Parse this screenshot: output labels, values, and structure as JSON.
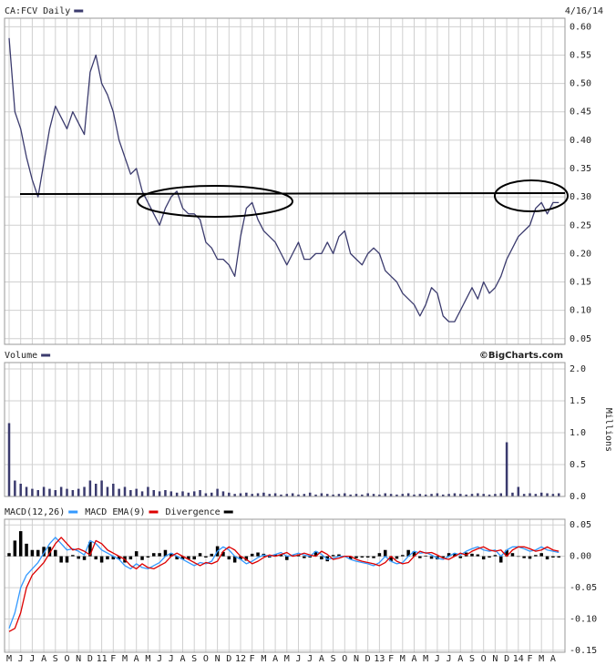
{
  "chart_data": [
    {
      "type": "line",
      "series": [
        {
          "name": "CA:FCV Daily",
          "color": "#3b3b6e",
          "values": [
            0.58,
            0.45,
            0.42,
            0.37,
            0.33,
            0.3,
            0.36,
            0.42,
            0.46,
            0.44,
            0.42,
            0.45,
            0.43,
            0.41,
            0.52,
            0.55,
            0.5,
            0.48,
            0.45,
            0.4,
            0.37,
            0.34,
            0.35,
            0.31,
            0.29,
            0.27,
            0.25,
            0.28,
            0.3,
            0.31,
            0.28,
            0.27,
            0.27,
            0.26,
            0.22,
            0.21,
            0.19,
            0.19,
            0.18,
            0.16,
            0.23,
            0.28,
            0.29,
            0.26,
            0.24,
            0.23,
            0.22,
            0.2,
            0.18,
            0.2,
            0.22,
            0.19,
            0.19,
            0.2,
            0.2,
            0.22,
            0.2,
            0.23,
            0.24,
            0.2,
            0.19,
            0.18,
            0.2,
            0.21,
            0.2,
            0.17,
            0.16,
            0.15,
            0.13,
            0.12,
            0.11,
            0.09,
            0.11,
            0.14,
            0.13,
            0.09,
            0.08,
            0.08,
            0.1,
            0.12,
            0.14,
            0.12,
            0.15,
            0.13,
            0.14,
            0.16,
            0.19,
            0.21,
            0.23,
            0.24,
            0.25,
            0.28,
            0.29,
            0.27,
            0.29,
            0.29
          ]
        }
      ],
      "date": "4/16/14",
      "ylim": [
        0.04,
        0.615
      ],
      "yticks": [
        {
          "value": 0.6,
          "label": "0.60"
        },
        0.55,
        {
          "value": 0.5,
          "label": "0.50"
        },
        0.45,
        {
          "value": 0.4,
          "label": "0.40"
        },
        0.35,
        {
          "value": 0.3,
          "label": "0.30"
        },
        0.25,
        {
          "value": 0.2,
          "label": "0.20"
        },
        0.15,
        {
          "value": 0.1,
          "label": "0.10"
        },
        0.05
      ],
      "grid": true
    },
    {
      "type": "bar",
      "series": [
        {
          "name": "Volume",
          "color": "#3b3b6e",
          "values": [
            1.15,
            0.25,
            0.2,
            0.15,
            0.12,
            0.1,
            0.15,
            0.12,
            0.1,
            0.15,
            0.12,
            0.1,
            0.12,
            0.15,
            0.25,
            0.2,
            0.25,
            0.15,
            0.2,
            0.12,
            0.15,
            0.1,
            0.12,
            0.08,
            0.15,
            0.1,
            0.08,
            0.1,
            0.08,
            0.06,
            0.08,
            0.06,
            0.08,
            0.1,
            0.05,
            0.06,
            0.12,
            0.08,
            0.06,
            0.04,
            0.05,
            0.06,
            0.04,
            0.05,
            0.06,
            0.04,
            0.05,
            0.03,
            0.04,
            0.05,
            0.03,
            0.04,
            0.06,
            0.03,
            0.05,
            0.04,
            0.03,
            0.04,
            0.05,
            0.03,
            0.04,
            0.03,
            0.05,
            0.04,
            0.03,
            0.05,
            0.04,
            0.03,
            0.04,
            0.05,
            0.03,
            0.04,
            0.03,
            0.04,
            0.05,
            0.03,
            0.04,
            0.05,
            0.04,
            0.03,
            0.04,
            0.05,
            0.04,
            0.03,
            0.04,
            0.05,
            0.85,
            0.06,
            0.15,
            0.04,
            0.05,
            0.04,
            0.06,
            0.05,
            0.04,
            0.05
          ]
        }
      ],
      "source": "©BigCharts.com",
      "y_label": "Millions",
      "ylim": [
        0,
        2.1
      ],
      "yticks": [
        {
          "value": 2,
          "label": "2.0"
        },
        1.5,
        {
          "value": 1,
          "label": "1.0"
        },
        0.5,
        {
          "value": 0,
          "label": "0.0"
        }
      ],
      "grid": true
    },
    {
      "type": "line",
      "categories": [
        "M",
        null,
        "J",
        null,
        "J",
        null,
        "A",
        null,
        "S",
        null,
        "O",
        null,
        "N",
        null,
        "D",
        null,
        "11",
        null,
        "F",
        null,
        "M",
        null,
        "A",
        null,
        "M",
        null,
        "J",
        null,
        "J",
        null,
        "A",
        null,
        "S",
        null,
        "O",
        null,
        "N",
        null,
        "D",
        null,
        "12",
        null,
        "F",
        null,
        "M",
        null,
        "A",
        null,
        "M",
        null,
        "J",
        null,
        "J",
        null,
        "A",
        null,
        "S",
        null,
        "O",
        null,
        "N",
        null,
        "D",
        null,
        "13",
        null,
        "F",
        null,
        "M",
        null,
        "A",
        null,
        "M",
        null,
        "J",
        null,
        "J",
        null,
        "A",
        null,
        "S",
        null,
        "O",
        null,
        "N",
        null,
        "D",
        null,
        "14",
        null,
        "F",
        null,
        "M",
        null,
        "A",
        null
      ],
      "series": [
        {
          "name": "MACD(12,26)",
          "color": "#3399ff",
          "values": [
            -0.115,
            -0.09,
            -0.05,
            -0.03,
            -0.02,
            -0.01,
            0.005,
            0.02,
            0.03,
            0.02,
            0.01,
            0.012,
            0.008,
            0.002,
            0.025,
            0.02,
            0.01,
            0.005,
            0.0,
            -0.005,
            -0.015,
            -0.02,
            -0.012,
            -0.018,
            -0.02,
            -0.015,
            -0.01,
            0.0,
            0.005,
            0.0,
            -0.005,
            -0.01,
            -0.015,
            -0.01,
            -0.012,
            -0.008,
            0.008,
            0.015,
            0.01,
            0.0,
            -0.005,
            -0.012,
            -0.008,
            -0.002,
            0.002,
            0.0,
            0.003,
            0.006,
            0.0,
            0.002,
            0.005,
            0.002,
            0.0,
            0.008,
            0.003,
            -0.005,
            -0.003,
            0.0,
            0.0,
            -0.005,
            -0.008,
            -0.01,
            -0.012,
            -0.015,
            -0.01,
            0.0,
            -0.008,
            -0.012,
            -0.01,
            0.0,
            0.008,
            0.005,
            0.006,
            0.002,
            -0.003,
            -0.005,
            0.0,
            0.005,
            0.002,
            0.008,
            0.012,
            0.015,
            0.01,
            0.008,
            0.01,
            0.0,
            0.01,
            0.015,
            0.015,
            0.012,
            0.008,
            0.01,
            0.015,
            0.01,
            0.008,
            0.006
          ]
        },
        {
          "name": "MACD EMA(9)",
          "color": "#dd0000",
          "values": [
            -0.12,
            -0.115,
            -0.09,
            -0.05,
            -0.03,
            -0.02,
            -0.01,
            0.005,
            0.02,
            0.03,
            0.02,
            0.01,
            0.012,
            0.008,
            0.002,
            0.025,
            0.02,
            0.01,
            0.005,
            0.0,
            -0.005,
            -0.015,
            -0.02,
            -0.012,
            -0.018,
            -0.02,
            -0.015,
            -0.01,
            0.0,
            0.005,
            0.0,
            -0.005,
            -0.01,
            -0.015,
            -0.01,
            -0.012,
            -0.008,
            0.008,
            0.015,
            0.01,
            0.0,
            -0.005,
            -0.012,
            -0.008,
            -0.002,
            0.002,
            0.0,
            0.003,
            0.006,
            0.0,
            0.002,
            0.005,
            0.002,
            0.0,
            0.008,
            0.003,
            -0.005,
            -0.003,
            0.0,
            0.0,
            -0.005,
            -0.008,
            -0.01,
            -0.012,
            -0.015,
            -0.01,
            0.0,
            -0.008,
            -0.012,
            -0.01,
            0.0,
            0.008,
            0.005,
            0.006,
            0.002,
            -0.003,
            -0.005,
            0.0,
            0.005,
            0.002,
            0.008,
            0.012,
            0.015,
            0.01,
            0.008,
            0.01,
            0.0,
            0.01,
            0.015,
            0.015,
            0.012,
            0.008,
            0.01,
            0.015,
            0.01,
            0.008
          ]
        },
        {
          "name": "Divergence",
          "color": "#000000",
          "type": "bar",
          "values": [
            0.005,
            0.025,
            0.04,
            0.02,
            0.01,
            0.01,
            0.015,
            0.015,
            0.01,
            -0.01,
            -0.01,
            0.002,
            -0.004,
            -0.006,
            0.023,
            -0.005,
            -0.01,
            -0.005,
            -0.005,
            -0.005,
            -0.01,
            -0.005,
            0.008,
            -0.006,
            -0.002,
            0.005,
            0.005,
            0.01,
            0.005,
            -0.005,
            -0.005,
            -0.005,
            -0.005,
            0.005,
            -0.002,
            0.004,
            0.016,
            0.007,
            -0.005,
            -0.01,
            -0.005,
            -0.007,
            0.004,
            0.006,
            0.004,
            -0.002,
            0.003,
            0.003,
            -0.006,
            0.002,
            0.003,
            -0.003,
            -0.002,
            0.008,
            -0.005,
            -0.008,
            0.002,
            0.003,
            0.0,
            -0.005,
            -0.003,
            -0.002,
            -0.002,
            -0.003,
            0.005,
            0.01,
            -0.008,
            -0.004,
            0.002,
            0.01,
            0.008,
            -0.003,
            0.001,
            -0.004,
            -0.005,
            -0.002,
            0.005,
            0.005,
            -0.003,
            0.006,
            0.004,
            0.003,
            -0.005,
            -0.002,
            0.002,
            -0.01,
            0.01,
            0.005,
            0.0,
            -0.003,
            -0.004,
            0.002,
            0.005,
            -0.005,
            -0.002,
            -0.002
          ]
        }
      ],
      "ylim": [
        -0.153,
        0.059
      ],
      "yticks": [
        0.05,
        {
          "value": 0,
          "label": "0.00"
        },
        -0.05,
        {
          "value": -0.1,
          "label": "-0.10"
        },
        -0.15
      ],
      "grid": true
    }
  ]
}
